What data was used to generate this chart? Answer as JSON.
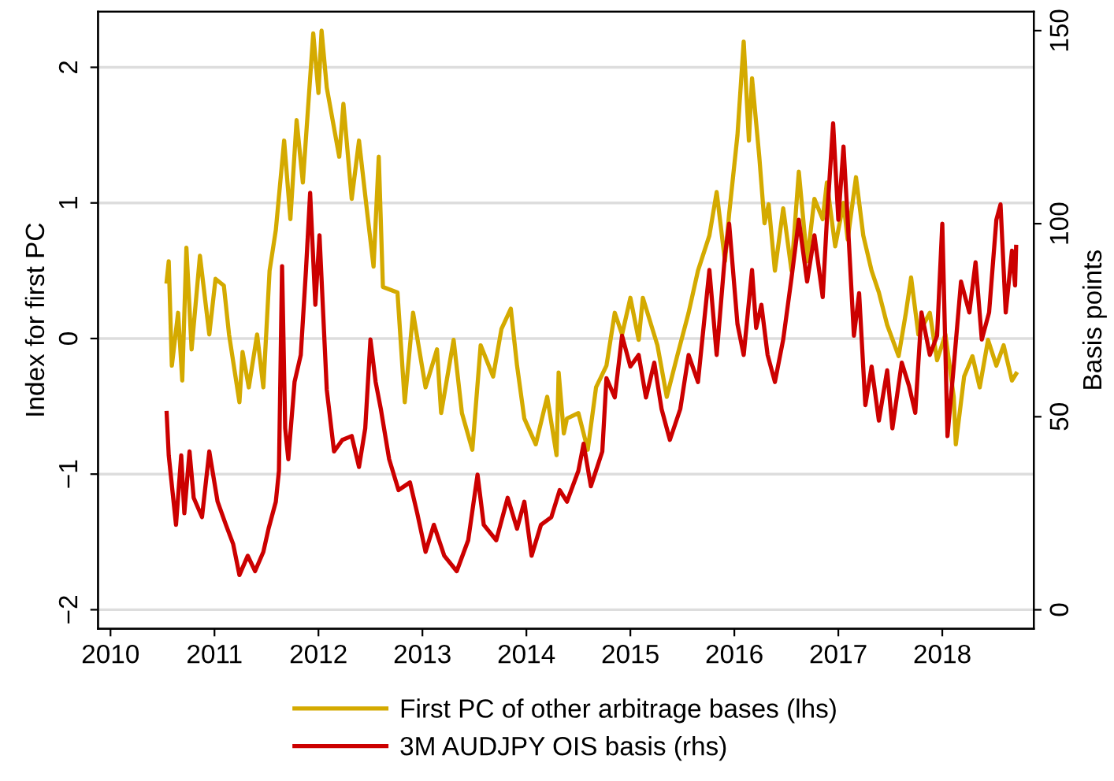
{
  "chart_data": {
    "type": "line",
    "ylabel": "Index for first PC",
    "y2label": "Basis points",
    "xlim": [
      2009.88,
      2018.88
    ],
    "xticks": [
      2010,
      2011,
      2012,
      2013,
      2014,
      2015,
      2016,
      2017,
      2018
    ],
    "ylim": [
      -2.14,
      2.41
    ],
    "yticks": [
      {
        "value": -2,
        "label": "−2"
      },
      {
        "value": -1,
        "label": "−1"
      },
      0,
      1,
      2
    ],
    "y2lim": [
      -4.9,
      154.9
    ],
    "y2ticks": [
      0,
      50,
      100,
      150
    ],
    "grid": "y",
    "legend": "bottom",
    "marker": "none",
    "line_style": "solid",
    "series": [
      {
        "name": "First PC of other arbitrage bases (lhs)",
        "color": "#d4aa00",
        "x": [
          2010.54,
          2010.56,
          2010.59,
          2010.65,
          2010.69,
          2010.73,
          2010.78,
          2010.86,
          2010.95,
          2011.01,
          2011.09,
          2011.14,
          2011.24,
          2011.27,
          2011.33,
          2011.41,
          2011.47,
          2011.53,
          2011.59,
          2011.67,
          2011.73,
          2011.79,
          2011.85,
          2011.95,
          2012.0,
          2012.03,
          2012.08,
          2012.2,
          2012.24,
          2012.32,
          2012.39,
          2012.47,
          2012.53,
          2012.58,
          2012.62,
          2012.76,
          2012.83,
          2012.91,
          2013.03,
          2013.14,
          2013.18,
          2013.3,
          2013.38,
          2013.48,
          2013.56,
          2013.68,
          2013.76,
          2013.85,
          2013.91,
          2013.98,
          2014.09,
          2014.2,
          2014.29,
          2014.31,
          2014.36,
          2014.39,
          2014.5,
          2014.59,
          2014.67,
          2014.77,
          2014.85,
          2014.92,
          2015.0,
          2015.08,
          2015.12,
          2015.26,
          2015.35,
          2015.45,
          2015.56,
          2015.65,
          2015.76,
          2015.83,
          2015.91,
          2015.95,
          2016.03,
          2016.09,
          2016.14,
          2016.17,
          2016.24,
          2016.29,
          2016.33,
          2016.39,
          2016.47,
          2016.55,
          2016.62,
          2016.7,
          2016.77,
          2016.85,
          2016.89,
          2016.97,
          2017.05,
          2017.09,
          2017.17,
          2017.24,
          2017.32,
          2017.39,
          2017.47,
          2017.58,
          2017.65,
          2017.7,
          2017.77,
          2017.88,
          2017.95,
          2018.03,
          2018.11,
          2018.13,
          2018.21,
          2018.29,
          2018.36,
          2018.44,
          2018.52,
          2018.59,
          2018.67,
          2018.71
        ],
        "values": [
          0.42,
          0.57,
          -0.2,
          0.19,
          -0.31,
          0.67,
          -0.08,
          0.61,
          0.03,
          0.44,
          0.39,
          0.03,
          -0.47,
          -0.1,
          -0.36,
          0.03,
          -0.36,
          0.5,
          0.8,
          1.46,
          0.88,
          1.61,
          1.15,
          2.25,
          1.81,
          2.27,
          1.85,
          1.34,
          1.73,
          1.03,
          1.46,
          0.92,
          0.53,
          1.34,
          0.38,
          0.34,
          -0.47,
          0.19,
          -0.36,
          -0.08,
          -0.55,
          -0.01,
          -0.55,
          -0.82,
          -0.05,
          -0.28,
          0.07,
          0.22,
          -0.2,
          -0.59,
          -0.78,
          -0.43,
          -0.86,
          -0.25,
          -0.7,
          -0.59,
          -0.55,
          -0.82,
          -0.36,
          -0.2,
          0.19,
          0.03,
          0.3,
          -0.01,
          0.3,
          -0.05,
          -0.43,
          -0.13,
          0.19,
          0.5,
          0.76,
          1.08,
          0.57,
          0.92,
          1.5,
          2.19,
          1.46,
          1.92,
          1.34,
          0.85,
          0.99,
          0.5,
          0.96,
          0.5,
          1.23,
          0.57,
          1.03,
          0.88,
          1.15,
          0.68,
          1.0,
          0.73,
          1.19,
          0.76,
          0.5,
          0.34,
          0.1,
          -0.13,
          0.19,
          0.45,
          0.03,
          0.19,
          -0.16,
          0.03,
          -0.43,
          -0.78,
          -0.28,
          -0.13,
          -0.36,
          -0.01,
          -0.2,
          -0.05,
          -0.31,
          -0.26
        ]
      },
      {
        "name": "3M AUDJPY OIS basis (rhs)",
        "color": "#cc0000",
        "axis": "y2",
        "x": [
          2010.54,
          2010.56,
          2010.63,
          2010.68,
          2010.71,
          2010.76,
          2010.8,
          2010.88,
          2010.95,
          2011.03,
          2011.11,
          2011.18,
          2011.24,
          2011.32,
          2011.39,
          2011.47,
          2011.52,
          2011.59,
          2011.62,
          2011.65,
          2011.68,
          2011.71,
          2011.77,
          2011.83,
          2011.88,
          2011.92,
          2011.97,
          2012.01,
          2012.08,
          2012.15,
          2012.23,
          2012.32,
          2012.39,
          2012.45,
          2012.5,
          2012.55,
          2012.6,
          2012.68,
          2012.77,
          2012.88,
          2012.95,
          2013.03,
          2013.11,
          2013.21,
          2013.33,
          2013.44,
          2013.53,
          2013.59,
          2013.71,
          2013.82,
          2013.91,
          2013.98,
          2014.05,
          2014.14,
          2014.24,
          2014.32,
          2014.39,
          2014.5,
          2014.55,
          2014.62,
          2014.73,
          2014.77,
          2014.85,
          2014.92,
          2015.0,
          2015.08,
          2015.15,
          2015.23,
          2015.3,
          2015.38,
          2015.48,
          2015.56,
          2015.65,
          2015.76,
          2015.83,
          2015.91,
          2015.95,
          2016.03,
          2016.09,
          2016.17,
          2016.21,
          2016.26,
          2016.32,
          2016.39,
          2016.47,
          2016.55,
          2016.62,
          2016.7,
          2016.77,
          2016.85,
          2016.89,
          2016.95,
          2017.0,
          2017.05,
          2017.09,
          2017.15,
          2017.2,
          2017.26,
          2017.32,
          2017.39,
          2017.47,
          2017.52,
          2017.61,
          2017.68,
          2017.74,
          2017.8,
          2017.88,
          2017.95,
          2018.0,
          2018.05,
          2018.11,
          2018.18,
          2018.26,
          2018.32,
          2018.38,
          2018.45,
          2018.52,
          2018.56,
          2018.61,
          2018.67,
          2018.7,
          2018.71
        ],
        "values": [
          51,
          40,
          22,
          40,
          25,
          41,
          29,
          24,
          41,
          28,
          22,
          17,
          9,
          14,
          10,
          15,
          21,
          28,
          36,
          89,
          47,
          39,
          59,
          66,
          88,
          108,
          79,
          97,
          57,
          41,
          44,
          45,
          37,
          47,
          70,
          59,
          52,
          39,
          31,
          33,
          25,
          15,
          22,
          14,
          10,
          18,
          35,
          22,
          18,
          29,
          21,
          28,
          14,
          22,
          24,
          31,
          28,
          36,
          43,
          32,
          41,
          60,
          55,
          71,
          63,
          66,
          55,
          64,
          52,
          44,
          52,
          66,
          59,
          88,
          66,
          92,
          100,
          74,
          66,
          88,
          73,
          79,
          66,
          59,
          70,
          86,
          101,
          85,
          97,
          81,
          101,
          126,
          101,
          120,
          101,
          71,
          82,
          53,
          63,
          49,
          62,
          47,
          64,
          58,
          51,
          77,
          66,
          71,
          100,
          45,
          63,
          85,
          77,
          90,
          70,
          77,
          101,
          105,
          77,
          93,
          84,
          94
        ]
      }
    ]
  }
}
